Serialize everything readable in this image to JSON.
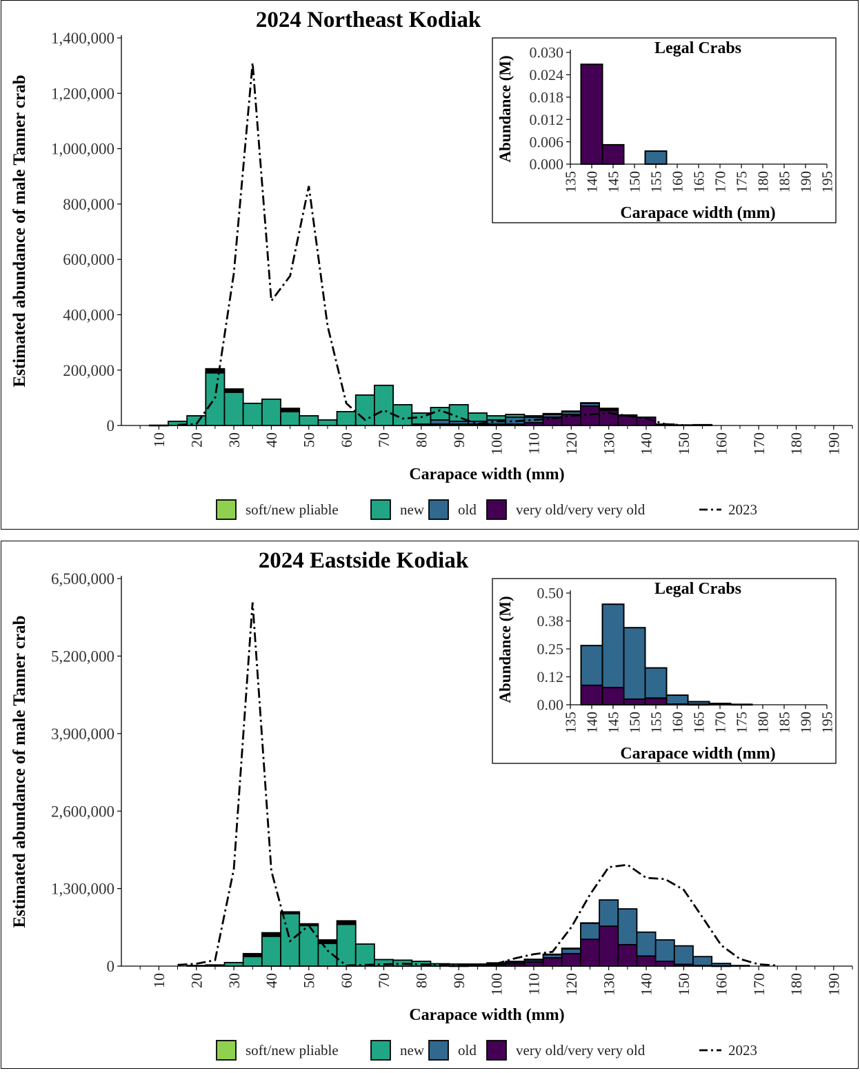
{
  "colors": {
    "soft_new_pliable": "#8fd14f",
    "new": "#21a685",
    "old": "#31688e",
    "very_old": "#440154",
    "line_2023": "#000000"
  },
  "legend": {
    "labels": [
      "soft/new pliable",
      "new",
      "old",
      "very old/very very old"
    ],
    "line_label": "2023"
  },
  "chart_data": [
    {
      "type": "bar",
      "stacked": true,
      "title": "2024 Northeast Kodiak",
      "xlabel": "Carapace width (mm)",
      "ylabel": "Estimated abundance of male Tanner crab",
      "ylim": [
        0,
        1400000
      ],
      "yticks": [
        0,
        200000,
        400000,
        600000,
        800000,
        1000000,
        1200000,
        1400000
      ],
      "ytick_labels": [
        "0",
        "200,000",
        "400,000",
        "600,000",
        "800,000",
        "1,000,000",
        "1,200,000",
        "1,400,000"
      ],
      "xticks": [
        10,
        20,
        30,
        40,
        50,
        60,
        70,
        80,
        90,
        100,
        110,
        120,
        130,
        140,
        150,
        160,
        170,
        180,
        190
      ],
      "xlim": [
        0,
        195
      ],
      "bin_width": 5,
      "x": [
        5,
        10,
        15,
        20,
        25,
        30,
        35,
        40,
        45,
        50,
        55,
        60,
        65,
        70,
        75,
        80,
        85,
        90,
        95,
        100,
        105,
        110,
        115,
        120,
        125,
        130,
        135,
        140,
        145,
        150,
        155,
        160
      ],
      "series": [
        {
          "name": "soft/new pliable",
          "key": "soft",
          "values": [
            0,
            0,
            0,
            0,
            15000,
            12000,
            0,
            0,
            12000,
            0,
            0,
            0,
            0,
            0,
            0,
            0,
            0,
            0,
            0,
            0,
            0,
            0,
            0,
            0,
            0,
            0,
            0,
            0,
            0,
            0,
            0,
            0
          ]
        },
        {
          "name": "new",
          "key": "new",
          "values": [
            0,
            1000,
            15000,
            35000,
            190000,
            120000,
            80000,
            95000,
            50000,
            35000,
            20000,
            50000,
            110000,
            145000,
            75000,
            40000,
            45000,
            60000,
            30000,
            15000,
            10000,
            5000,
            3000,
            2000,
            2000,
            2000,
            0,
            0,
            0,
            0,
            0,
            0
          ]
        },
        {
          "name": "old",
          "key": "old",
          "values": [
            0,
            0,
            0,
            0,
            0,
            0,
            0,
            0,
            0,
            0,
            0,
            0,
            0,
            0,
            0,
            5000,
            15000,
            10000,
            10000,
            15000,
            25000,
            20000,
            10000,
            10000,
            10000,
            5000,
            3000,
            0,
            0,
            0,
            0,
            0
          ]
        },
        {
          "name": "very old/very very old",
          "key": "very_old",
          "values": [
            0,
            0,
            0,
            0,
            0,
            0,
            0,
            0,
            0,
            0,
            0,
            0,
            0,
            0,
            0,
            0,
            5000,
            5000,
            5000,
            5000,
            5000,
            10000,
            30000,
            40000,
            70000,
            55000,
            35000,
            30000,
            5000,
            2000,
            3000,
            0
          ]
        }
      ],
      "line_2023": {
        "name": "2023",
        "x": [
          15,
          20,
          25,
          30,
          35,
          40,
          45,
          50,
          55,
          60,
          65,
          70,
          75,
          80,
          85,
          90,
          95,
          100,
          105,
          110,
          115,
          120,
          125,
          130,
          135,
          140,
          145,
          150
        ],
        "values": [
          2000,
          5000,
          100000,
          550000,
          1310000,
          450000,
          540000,
          865000,
          360000,
          80000,
          20000,
          55000,
          25000,
          30000,
          55000,
          30000,
          5000,
          15000,
          15000,
          20000,
          25000,
          35000,
          40000,
          45000,
          35000,
          25000,
          5000,
          1000
        ]
      },
      "inset": {
        "type": "bar",
        "stacked": true,
        "title": "Legal Crabs",
        "xlabel": "Carapace width (mm)",
        "ylabel": "Abundance (M)",
        "ylim": [
          0,
          0.03
        ],
        "yticks": [
          0,
          0.006,
          0.012,
          0.018,
          0.024,
          0.03
        ],
        "ytick_labels": [
          "0.000",
          "0.006",
          "0.012",
          "0.018",
          "0.024",
          "0.030"
        ],
        "xticks": [
          135,
          140,
          145,
          150,
          155,
          160,
          165,
          170,
          175,
          180,
          185,
          190,
          195
        ],
        "xlim": [
          135,
          195
        ],
        "bin_width": 5,
        "x": [
          140,
          145,
          150,
          155
        ],
        "series": [
          {
            "name": "old",
            "key": "old",
            "values": [
              0,
              0,
              0,
              0.0035
            ]
          },
          {
            "name": "very old/very very old",
            "key": "very_old",
            "values": [
              0.0268,
              0.0052,
              0,
              0
            ]
          }
        ]
      }
    },
    {
      "type": "bar",
      "stacked": true,
      "title": "2024 Eastside Kodiak",
      "xlabel": "Carapace width (mm)",
      "ylabel": "Estimated abundance of male Tanner crab",
      "ylim": [
        0,
        6500000
      ],
      "yticks": [
        0,
        1300000,
        2600000,
        3900000,
        5200000,
        6500000
      ],
      "ytick_labels": [
        "0",
        "1,300,000",
        "2,600,000",
        "3,900,000",
        "5,200,000",
        "6,500,000"
      ],
      "xticks": [
        10,
        20,
        30,
        40,
        50,
        60,
        70,
        80,
        90,
        100,
        110,
        120,
        130,
        140,
        150,
        160,
        170,
        180,
        190
      ],
      "xlim": [
        0,
        195
      ],
      "bin_width": 5,
      "x": [
        5,
        10,
        15,
        20,
        25,
        30,
        35,
        40,
        45,
        50,
        55,
        60,
        65,
        70,
        75,
        80,
        85,
        90,
        95,
        100,
        105,
        110,
        115,
        120,
        125,
        130,
        135,
        140,
        145,
        150,
        155,
        160,
        165
      ],
      "series": [
        {
          "name": "soft/new pliable",
          "key": "soft",
          "values": [
            0,
            0,
            0,
            0,
            0,
            0,
            50000,
            60000,
            30000,
            30000,
            60000,
            60000,
            0,
            0,
            0,
            0,
            0,
            0,
            0,
            0,
            0,
            0,
            0,
            0,
            0,
            0,
            0,
            0,
            0,
            0,
            0,
            0,
            0
          ]
        },
        {
          "name": "new",
          "key": "new",
          "values": [
            0,
            0,
            0,
            10000,
            20000,
            60000,
            160000,
            500000,
            880000,
            680000,
            380000,
            700000,
            370000,
            110000,
            100000,
            80000,
            40000,
            30000,
            20000,
            20000,
            15000,
            15000,
            10000,
            10000,
            5000,
            0,
            0,
            0,
            0,
            0,
            0,
            0,
            0
          ]
        },
        {
          "name": "old",
          "key": "old",
          "values": [
            0,
            0,
            0,
            0,
            0,
            0,
            0,
            0,
            0,
            0,
            0,
            0,
            0,
            0,
            0,
            0,
            0,
            0,
            5000,
            15000,
            25000,
            30000,
            50000,
            80000,
            270000,
            440000,
            600000,
            400000,
            360000,
            310000,
            150000,
            40000,
            10000
          ]
        },
        {
          "name": "very old/very very old",
          "key": "very_old",
          "values": [
            0,
            0,
            0,
            0,
            0,
            0,
            0,
            0,
            0,
            0,
            0,
            0,
            0,
            0,
            0,
            0,
            0,
            5000,
            10000,
            20000,
            40000,
            70000,
            140000,
            210000,
            450000,
            670000,
            360000,
            170000,
            80000,
            30000,
            10000,
            5000,
            0
          ]
        }
      ],
      "line_2023": {
        "name": "2023",
        "x": [
          15,
          20,
          25,
          30,
          35,
          40,
          45,
          50,
          55,
          60,
          65,
          70,
          75,
          80,
          85,
          90,
          95,
          100,
          105,
          110,
          115,
          120,
          125,
          130,
          135,
          140,
          145,
          150,
          155,
          160,
          165,
          170,
          175
        ],
        "values": [
          20000,
          40000,
          100000,
          1630000,
          6100000,
          1600000,
          420000,
          680000,
          260000,
          10000,
          20000,
          30000,
          40000,
          30000,
          20000,
          10000,
          20000,
          40000,
          130000,
          200000,
          240000,
          650000,
          1200000,
          1660000,
          1700000,
          1480000,
          1460000,
          1280000,
          820000,
          350000,
          120000,
          30000,
          10000
        ]
      },
      "inset": {
        "type": "bar",
        "stacked": true,
        "title": "Legal Crabs",
        "xlabel": "Carapace width (mm)",
        "ylabel": "Abundance (M)",
        "ylim": [
          0,
          0.5
        ],
        "yticks": [
          0,
          0.125,
          0.25,
          0.375,
          0.5
        ],
        "ytick_labels": [
          "0.00",
          "0.12",
          "0.25",
          "0.38",
          "0.50"
        ],
        "xticks": [
          135,
          140,
          145,
          150,
          155,
          160,
          165,
          170,
          175,
          180,
          185,
          190,
          195
        ],
        "xlim": [
          135,
          195
        ],
        "bin_width": 5,
        "x": [
          140,
          145,
          150,
          155,
          160,
          165,
          170,
          175
        ],
        "series": [
          {
            "name": "old",
            "key": "old",
            "values": [
              0.178,
              0.373,
              0.32,
              0.135,
              0.04,
              0.012,
              0.006,
              0.002
            ]
          },
          {
            "name": "very old/very very old",
            "key": "very_old",
            "values": [
              0.087,
              0.077,
              0.025,
              0.03,
              0.003,
              0.002,
              0,
              0
            ]
          }
        ]
      }
    }
  ]
}
